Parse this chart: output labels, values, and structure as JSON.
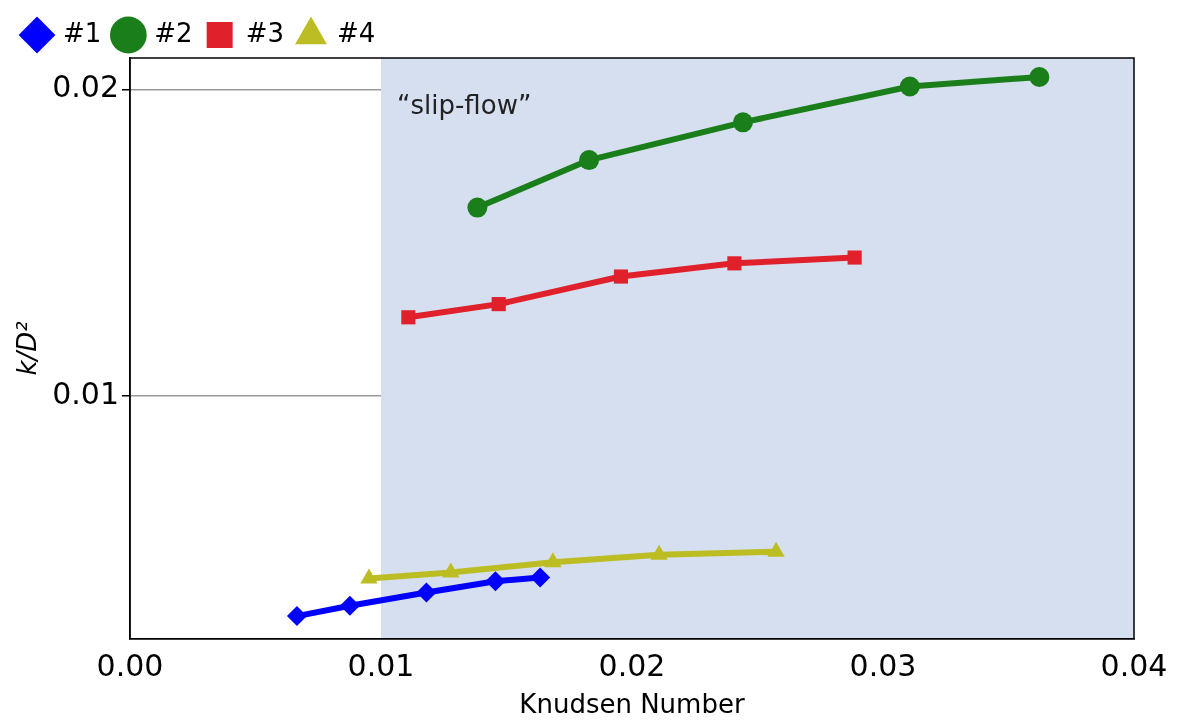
{
  "chart_data": {
    "type": "line",
    "xlabel": "Knudsen Number",
    "ylabel": "k/D²",
    "xlim": [
      0,
      0.04
    ],
    "xticks": [
      {
        "value": 0,
        "label": "0.00"
      },
      {
        "value": 0.01,
        "label": "0.01"
      },
      {
        "value": 0.02,
        "label": "0.02"
      },
      {
        "value": 0.03,
        "label": "0.03"
      },
      {
        "value": 0.04,
        "label": "0.04"
      }
    ],
    "ylim": [
      0.00207,
      0.02102
    ],
    "yticks": [
      0.01,
      0.02
    ],
    "grid": "y",
    "legend": "top left",
    "line_style": "solid",
    "bands": [
      {
        "axis": "x",
        "from": 0.01,
        "to": 0.04,
        "label": "“slip-flow”",
        "color": "#d6dff0"
      }
    ],
    "series": [
      {
        "name": "#1",
        "color": "#0000ff",
        "marker": "diamond",
        "x": [
          0.00665,
          0.00876,
          0.01181,
          0.01456,
          0.01634
        ],
        "values": [
          0.00281,
          0.00315,
          0.00358,
          0.00395,
          0.00407
        ]
      },
      {
        "name": "#2",
        "color": "#1a7f1a",
        "marker": "circle",
        "x": [
          0.01384,
          0.01829,
          0.02442,
          0.03107,
          0.03623
        ],
        "values": [
          0.01614,
          0.01769,
          0.01892,
          0.02009,
          0.0204
        ]
      },
      {
        "name": "#3",
        "color": "#e0202a",
        "marker": "square",
        "x": [
          0.01109,
          0.01469,
          0.01956,
          0.02408,
          0.02887
        ],
        "values": [
          0.01256,
          0.01299,
          0.01389,
          0.01432,
          0.01451
        ]
      },
      {
        "name": "#4",
        "color": "#bcbd22",
        "marker": "triangle",
        "x": [
          0.00952,
          0.01278,
          0.01685,
          0.02108,
          0.02574
        ],
        "values": [
          0.00404,
          0.00423,
          0.00457,
          0.00481,
          0.00491
        ]
      }
    ]
  }
}
